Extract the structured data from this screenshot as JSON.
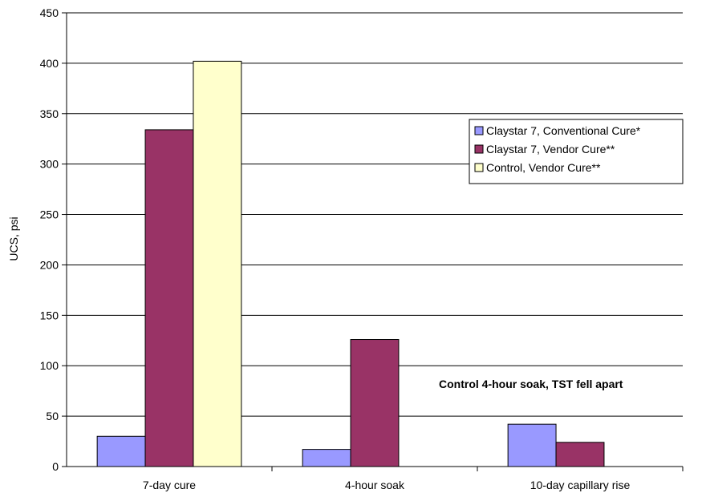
{
  "chart_data": {
    "type": "bar",
    "title": "",
    "xlabel": "",
    "ylabel": "UCS, psi",
    "ylim": [
      0,
      450
    ],
    "yticks": [
      0,
      50,
      100,
      150,
      200,
      250,
      300,
      350,
      400,
      450
    ],
    "grid": "horizontal",
    "legend_position": "right",
    "categories": [
      "7-day cure",
      "4-hour soak",
      "10-day capillary rise"
    ],
    "series": [
      {
        "name": "Claystar 7, Conventional Cure*",
        "color": "#9999ff",
        "values": [
          30,
          17,
          42
        ]
      },
      {
        "name": "Claystar 7, Vendor Cure**",
        "color": "#993366",
        "values": [
          334,
          126,
          24
        ]
      },
      {
        "name": "Control, Vendor Cure**",
        "color": "#ffffcc",
        "values": [
          402,
          null,
          null
        ]
      }
    ],
    "annotation": "Control 4-hour soak, TST fell apart"
  }
}
